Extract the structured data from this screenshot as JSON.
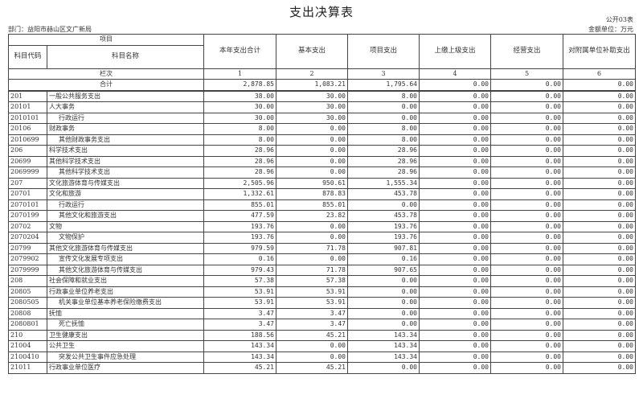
{
  "title": "支出决算表",
  "form_no": "公开03表",
  "department": "部门：益阳市赫山区文广新局",
  "unit": "金额单位：万元",
  "headers": {
    "item": "项目",
    "code": "科目代码",
    "name": "科目名称",
    "cols": [
      "本年支出合计",
      "基本支出",
      "项目支出",
      "上缴上级支出",
      "经营支出",
      "对附属单位补助支出"
    ]
  },
  "col_row_label": "栏次",
  "col_numbers": [
    "1",
    "2",
    "3",
    "4",
    "5",
    "6"
  ],
  "total_label": "合计",
  "total_values": [
    "2,878.85",
    "1,083.21",
    "1,795.64",
    "0.00",
    "0.00",
    "0.00"
  ],
  "rows": [
    {
      "code": "201",
      "name": "一般公共服务支出",
      "indent": false,
      "values": [
        "38.00",
        "30.00",
        "8.00",
        "0.00",
        "0.00",
        "0.00"
      ]
    },
    {
      "code": "20101",
      "name": "人大事务",
      "indent": false,
      "values": [
        "30.00",
        "30.00",
        "0.00",
        "0.00",
        "0.00",
        "0.00"
      ]
    },
    {
      "code": "2010101",
      "name": "行政运行",
      "indent": true,
      "values": [
        "30.00",
        "30.00",
        "0.00",
        "0.00",
        "0.00",
        "0.00"
      ]
    },
    {
      "code": "20106",
      "name": "财政事务",
      "indent": false,
      "values": [
        "8.00",
        "0.00",
        "8.00",
        "0.00",
        "0.00",
        "0.00"
      ]
    },
    {
      "code": "2010699",
      "name": "其他财政事务支出",
      "indent": true,
      "values": [
        "8.00",
        "0.00",
        "8.00",
        "0.00",
        "0.00",
        "0.00"
      ]
    },
    {
      "code": "206",
      "name": "科学技术支出",
      "indent": false,
      "values": [
        "28.96",
        "0.00",
        "28.96",
        "0.00",
        "0.00",
        "0.00"
      ]
    },
    {
      "code": "20699",
      "name": "其他科学技术支出",
      "indent": false,
      "values": [
        "28.96",
        "0.00",
        "28.96",
        "0.00",
        "0.00",
        "0.00"
      ]
    },
    {
      "code": "2069999",
      "name": "其他科学技术支出",
      "indent": true,
      "values": [
        "28.96",
        "0.00",
        "28.96",
        "0.00",
        "0.00",
        "0.00"
      ]
    },
    {
      "code": "207",
      "name": "文化旅游体育与传媒支出",
      "indent": false,
      "values": [
        "2,505.96",
        "950.61",
        "1,555.34",
        "0.00",
        "0.00",
        "0.00"
      ]
    },
    {
      "code": "20701",
      "name": "文化和旅游",
      "indent": false,
      "values": [
        "1,332.61",
        "878.83",
        "453.78",
        "0.00",
        "0.00",
        "0.00"
      ]
    },
    {
      "code": "2070101",
      "name": "行政运行",
      "indent": true,
      "values": [
        "855.01",
        "855.01",
        "0.00",
        "0.00",
        "0.00",
        "0.00"
      ]
    },
    {
      "code": "2070199",
      "name": "其他文化和旅游支出",
      "indent": true,
      "values": [
        "477.59",
        "23.82",
        "453.78",
        "0.00",
        "0.00",
        "0.00"
      ]
    },
    {
      "code": "20702",
      "name": "文物",
      "indent": false,
      "values": [
        "193.76",
        "0.00",
        "193.76",
        "0.00",
        "0.00",
        "0.00"
      ]
    },
    {
      "code": "2070204",
      "name": "文物保护",
      "indent": true,
      "values": [
        "193.76",
        "0.00",
        "193.76",
        "0.00",
        "0.00",
        "0.00"
      ]
    },
    {
      "code": "20799",
      "name": "其他文化旅游体育与传媒支出",
      "indent": false,
      "values": [
        "979.59",
        "71.78",
        "907.81",
        "0.00",
        "0.00",
        "0.00"
      ]
    },
    {
      "code": "2079902",
      "name": "宣传文化发展专项支出",
      "indent": true,
      "values": [
        "0.16",
        "0.00",
        "0.16",
        "0.00",
        "0.00",
        "0.00"
      ]
    },
    {
      "code": "2079999",
      "name": "其他文化旅游体育与传媒支出",
      "indent": true,
      "values": [
        "979.43",
        "71.78",
        "907.65",
        "0.00",
        "0.00",
        "0.00"
      ]
    },
    {
      "code": "208",
      "name": "社会保障和就业支出",
      "indent": false,
      "values": [
        "57.38",
        "57.38",
        "0.00",
        "0.00",
        "0.00",
        "0.00"
      ]
    },
    {
      "code": "20805",
      "name": "行政事业单位养老支出",
      "indent": false,
      "values": [
        "53.91",
        "53.91",
        "0.00",
        "0.00",
        "0.00",
        "0.00"
      ]
    },
    {
      "code": "2080505",
      "name": "机关事业单位基本养老保险缴费支出",
      "indent": true,
      "values": [
        "53.91",
        "53.91",
        "0.00",
        "0.00",
        "0.00",
        "0.00"
      ]
    },
    {
      "code": "20808",
      "name": "抚恤",
      "indent": false,
      "values": [
        "3.47",
        "3.47",
        "0.00",
        "0.00",
        "0.00",
        "0.00"
      ]
    },
    {
      "code": "2080801",
      "name": "死亡抚恤",
      "indent": true,
      "values": [
        "3.47",
        "3.47",
        "0.00",
        "0.00",
        "0.00",
        "0.00"
      ]
    },
    {
      "code": "210",
      "name": "卫生健康支出",
      "indent": false,
      "values": [
        "188.56",
        "45.21",
        "143.34",
        "0.00",
        "0.00",
        "0.00"
      ]
    },
    {
      "code": "21004",
      "name": "公共卫生",
      "indent": false,
      "values": [
        "143.34",
        "0.00",
        "143.34",
        "0.00",
        "0.00",
        "0.00"
      ]
    },
    {
      "code": "2100410",
      "name": "突发公共卫生事件应急处理",
      "indent": true,
      "values": [
        "143.34",
        "0.00",
        "143.34",
        "0.00",
        "0.00",
        "0.00"
      ]
    },
    {
      "code": "21011",
      "name": "行政事业单位医疗",
      "indent": false,
      "values": [
        "45.21",
        "45.21",
        "0.00",
        "0.00",
        "0.00",
        "0.00"
      ]
    }
  ]
}
